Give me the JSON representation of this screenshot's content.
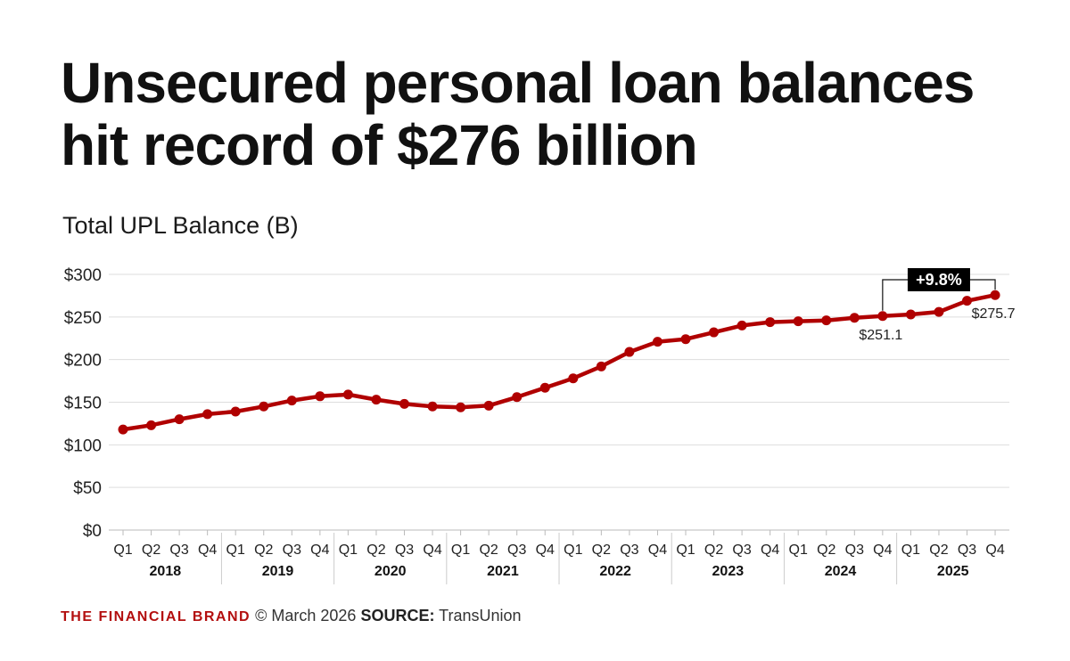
{
  "title_lines": [
    "Unsecured personal loan balances",
    "hit record of $276 billion"
  ],
  "footer": {
    "brand": "THE FINANCIAL BRAND",
    "date": "© March 2026",
    "source_label": "SOURCE:",
    "source": "TransUnion"
  },
  "colors": {
    "line": "#b00000",
    "brand": "#b30f0f",
    "grid": "#dddddd",
    "badge_bg": "#000000"
  },
  "chart_data": {
    "type": "line",
    "title": "Unsecured personal loan balances hit record of $276 billion",
    "ylabel": "Total UPL Balance (B)",
    "xlabel": "",
    "ylim": [
      0,
      300
    ],
    "yticks": [
      0,
      50,
      100,
      150,
      200,
      250,
      300
    ],
    "ytick_labels": [
      "$0",
      "$50",
      "$100",
      "$150",
      "$200",
      "$250",
      "$300"
    ],
    "grid": true,
    "quarters": [
      "Q1",
      "Q2",
      "Q3",
      "Q4",
      "Q1",
      "Q2",
      "Q3",
      "Q4",
      "Q1",
      "Q2",
      "Q3",
      "Q4",
      "Q1",
      "Q2",
      "Q3",
      "Q4",
      "Q1",
      "Q2",
      "Q3",
      "Q4",
      "Q1",
      "Q2",
      "Q3",
      "Q4",
      "Q1",
      "Q2",
      "Q3",
      "Q4",
      "Q1",
      "Q2",
      "Q3",
      "Q4"
    ],
    "years": [
      "2018",
      "2019",
      "2020",
      "2021",
      "2022",
      "2023",
      "2024",
      "2025"
    ],
    "series": [
      {
        "values": [
          118,
          123,
          130,
          136,
          139,
          145,
          152,
          157,
          159,
          153,
          148,
          145,
          144,
          146,
          156,
          167,
          178,
          192,
          209,
          221,
          224,
          232,
          240,
          244,
          245,
          246,
          249,
          251.1,
          253,
          256,
          269,
          275.7
        ]
      }
    ],
    "annotations": {
      "value_labels": [
        {
          "index": 27,
          "text": "$251.1"
        },
        {
          "index": 31,
          "text": "$275.7"
        }
      ],
      "change_badge": {
        "from_index": 27,
        "to_index": 31,
        "text": "+9.8%"
      }
    }
  }
}
